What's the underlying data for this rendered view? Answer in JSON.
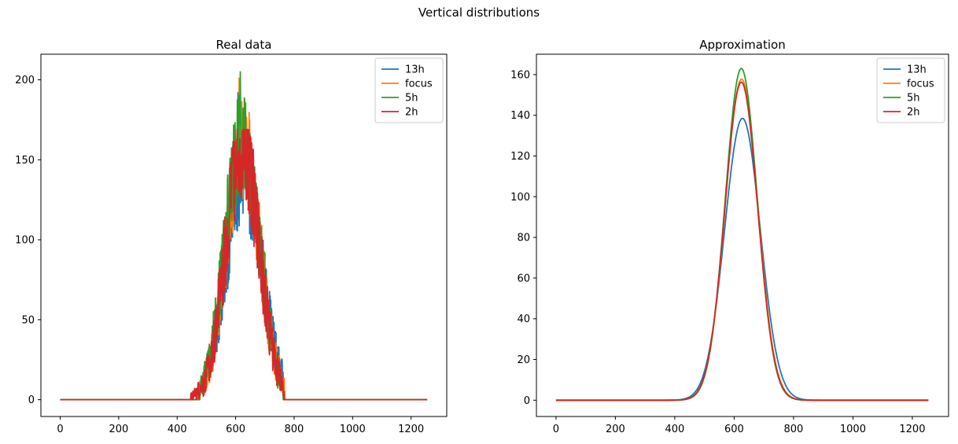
{
  "figure": {
    "title": "Vertical distributions"
  },
  "colors": {
    "13h": "#1f77b4",
    "focus": "#ff7f0e",
    "5h": "#2ca02c",
    "2h": "#d62728"
  },
  "chart_data": [
    {
      "type": "line",
      "title": "Real data",
      "xlabel": "",
      "ylabel": "",
      "xlim": [
        -66,
        1322
      ],
      "ylim": [
        -10.5,
        216
      ],
      "xticks": [
        0,
        200,
        400,
        600,
        800,
        1000,
        1200
      ],
      "yticks": [
        0,
        50,
        100,
        150,
        200
      ],
      "grid": false,
      "legend_position": "top-right",
      "noisy": true,
      "series": [
        {
          "name": "13h",
          "color": "#1f77b4",
          "peak_x": 628,
          "peak_y": 140,
          "width": 62,
          "support": [
            478,
            765
          ],
          "max_spike": 192
        },
        {
          "name": "focus",
          "color": "#ff7f0e",
          "peak_x": 625,
          "peak_y": 158,
          "width": 58,
          "support": [
            470,
            768
          ],
          "max_spike": 201
        },
        {
          "name": "5h",
          "color": "#2ca02c",
          "peak_x": 622,
          "peak_y": 163,
          "width": 58,
          "support": [
            476,
            762
          ],
          "max_spike": 205
        },
        {
          "name": "2h",
          "color": "#d62728",
          "peak_x": 624,
          "peak_y": 156,
          "width": 58,
          "support": [
            447,
            765
          ],
          "max_spike": 169
        }
      ]
    },
    {
      "type": "line",
      "title": "Approximation",
      "xlabel": "",
      "ylabel": "",
      "xlim": [
        -66,
        1322
      ],
      "ylim": [
        -8,
        170
      ],
      "xticks": [
        0,
        200,
        400,
        600,
        800,
        1000,
        1200
      ],
      "yticks": [
        0,
        20,
        40,
        60,
        80,
        100,
        120,
        140,
        160
      ],
      "grid": false,
      "legend_position": "top-right",
      "noisy": false,
      "series": [
        {
          "name": "13h",
          "color": "#1f77b4",
          "peak_x": 628,
          "peak_y": 138.5,
          "width": 60
        },
        {
          "name": "focus",
          "color": "#ff7f0e",
          "peak_x": 625,
          "peak_y": 157.8,
          "width": 55
        },
        {
          "name": "5h",
          "color": "#2ca02c",
          "peak_x": 624,
          "peak_y": 163.0,
          "width": 54
        },
        {
          "name": "2h",
          "color": "#d62728",
          "peak_x": 624,
          "peak_y": 156.3,
          "width": 55
        }
      ]
    }
  ]
}
